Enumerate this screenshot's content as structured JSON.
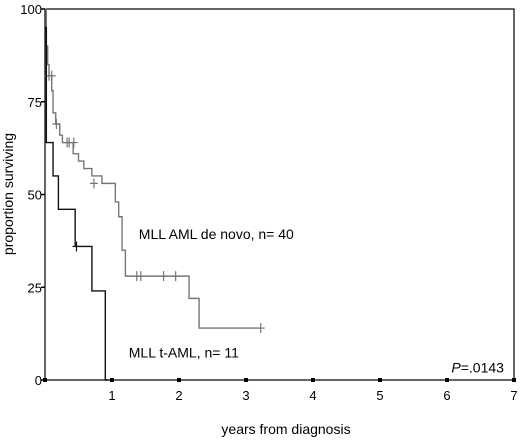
{
  "chart_data": {
    "type": "line",
    "step": true,
    "xlabel": "years from diagnosis",
    "ylabel": "proportion surviving",
    "xlim": [
      0,
      7
    ],
    "ylim": [
      0,
      100
    ],
    "x_ticks": [
      1,
      2,
      3,
      4,
      5,
      6,
      7
    ],
    "y_ticks": [
      0,
      25,
      50,
      75,
      100
    ],
    "y_tick_labels": [
      "0",
      "25",
      "50",
      "75",
      "100"
    ],
    "grid": false,
    "annotations": [
      {
        "text_prefix": "P",
        "text_value": "=.0143",
        "x": 6.85,
        "y": 2
      }
    ],
    "series": [
      {
        "name": "MLL AML de novo, n= 40",
        "label_pos": {
          "x": 1.4,
          "y": 38
        },
        "color": "#777777",
        "points": [
          [
            0,
            100
          ],
          [
            0.02,
            90
          ],
          [
            0.04,
            85
          ],
          [
            0.06,
            82
          ],
          [
            0.1,
            78
          ],
          [
            0.12,
            72
          ],
          [
            0.16,
            69
          ],
          [
            0.22,
            66
          ],
          [
            0.26,
            64
          ],
          [
            0.42,
            61
          ],
          [
            0.5,
            59
          ],
          [
            0.58,
            57
          ],
          [
            0.7,
            55
          ],
          [
            0.85,
            53
          ],
          [
            1.05,
            48
          ],
          [
            1.1,
            44
          ],
          [
            1.15,
            35
          ],
          [
            1.2,
            28
          ],
          [
            1.75,
            28
          ],
          [
            2.15,
            22
          ],
          [
            2.3,
            14
          ],
          [
            3.22,
            14
          ]
        ],
        "censored": [
          [
            0.06,
            82
          ],
          [
            0.1,
            82
          ],
          [
            0.17,
            69
          ],
          [
            0.33,
            64
          ],
          [
            0.36,
            64
          ],
          [
            0.43,
            64
          ],
          [
            0.73,
            53
          ],
          [
            1.37,
            28
          ],
          [
            1.43,
            28
          ],
          [
            1.77,
            28
          ],
          [
            1.95,
            28
          ],
          [
            3.22,
            14
          ]
        ]
      },
      {
        "name": "MLL t-AML, n= 11",
        "label_pos": {
          "x": 1.25,
          "y": 6
        },
        "color": "#111111",
        "points": [
          [
            0,
            95
          ],
          [
            0.02,
            64
          ],
          [
            0.12,
            55
          ],
          [
            0.2,
            46
          ],
          [
            0.45,
            36
          ],
          [
            0.7,
            24
          ],
          [
            0.9,
            0
          ],
          [
            0.95,
            0
          ]
        ],
        "censored": [
          [
            0.47,
            36
          ]
        ]
      }
    ]
  }
}
